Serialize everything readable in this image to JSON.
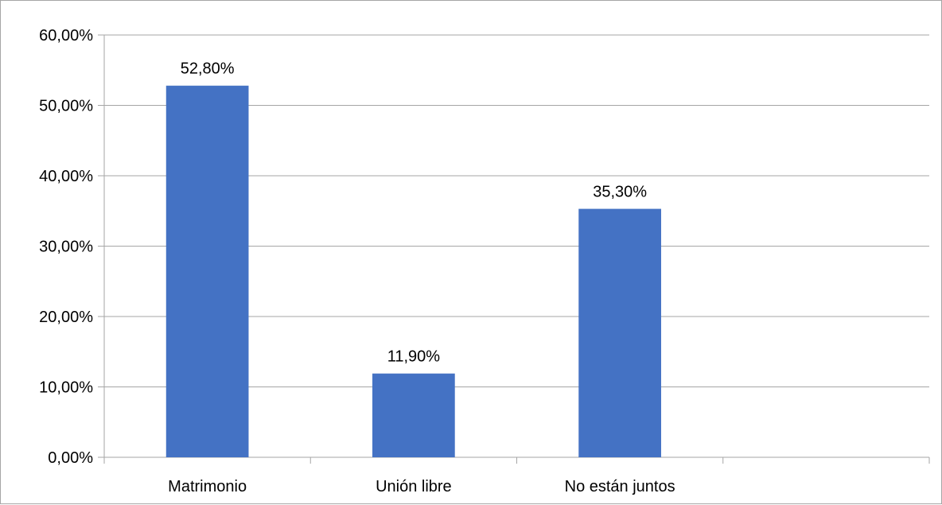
{
  "chart_data": {
    "type": "bar",
    "categories": [
      "Matrimonio",
      "Unión libre",
      "No están juntos",
      ""
    ],
    "values": [
      52.8,
      11.9,
      35.3,
      null
    ],
    "data_labels": [
      "52,80%",
      "11,90%",
      "35,30%",
      ""
    ],
    "ylim": [
      0,
      60
    ],
    "yticks": [
      0,
      10,
      20,
      30,
      40,
      50,
      60
    ],
    "ytick_labels": [
      "0,00%",
      "10,00%",
      "20,00%",
      "30,00%",
      "40,00%",
      "50,00%",
      "60,00%"
    ],
    "title": "",
    "xlabel": "",
    "ylabel": "",
    "grid": true,
    "legend": "none",
    "colors": {
      "bar": "#4472c4",
      "grid": "#a6a6a6",
      "axis": "#a6a6a6",
      "text": "#000000"
    }
  }
}
